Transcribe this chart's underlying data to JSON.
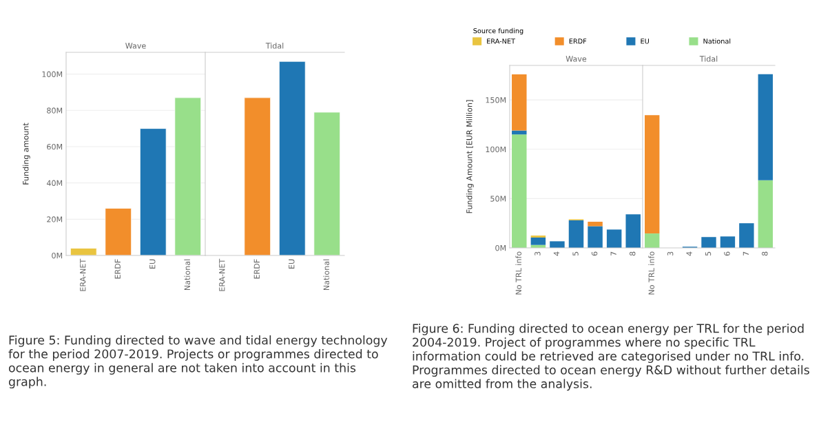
{
  "chart_data": [
    {
      "type": "bar",
      "title": "Wave",
      "ylabel": "Funding amount",
      "categories": [
        "ERA-NET",
        "ERDF",
        "EU",
        "National"
      ],
      "values": [
        4,
        26,
        70,
        87
      ],
      "colors": [
        "#e9c440",
        "#f28e2b",
        "#1f77b4",
        "#98df8a"
      ],
      "ylim": [
        0,
        112
      ],
      "yticks": [
        {
          "value": 0,
          "label": "0M"
        },
        {
          "value": 20,
          "label": "20M"
        },
        {
          "value": 40,
          "label": "40M"
        },
        {
          "value": 60,
          "label": "60M"
        },
        {
          "value": 80,
          "label": "80M"
        },
        {
          "value": 100,
          "label": "100M"
        }
      ],
      "grid": "y",
      "annotations": [
        "Figure 5: Funding directed to wave and tidal energy technology for the period 2007-2019. Projects or programmes directed to ocean energy in general are not taken into account in this graph."
      ]
    },
    {
      "type": "bar",
      "title": "Tidal",
      "categories": [
        "ERA-NET",
        "ERDF",
        "EU",
        "National"
      ],
      "values": [
        null,
        87,
        107,
        79
      ],
      "colors": [
        "#e9c440",
        "#f28e2b",
        "#1f77b4",
        "#98df8a"
      ],
      "ylim": [
        0,
        112
      ],
      "grid": "y",
      "tick_labels": "x"
    },
    {
      "type": "bar",
      "title": "Wave",
      "ylabel": "Funding Amount [EUR Million]",
      "legend_title": "Source funding",
      "legend": "top",
      "stacked": true,
      "categories": [
        "No TRL info",
        "3",
        "4",
        "5",
        "6",
        "7",
        "8"
      ],
      "series": [
        {
          "name": "National",
          "color": "#98df8a",
          "values": [
            115,
            3,
            0,
            0,
            0,
            0,
            0
          ]
        },
        {
          "name": "EU",
          "color": "#1f77b4",
          "values": [
            4,
            7.5,
            6.7,
            28,
            22,
            18.6,
            34
          ]
        },
        {
          "name": "ERDF",
          "color": "#f28e2b",
          "values": [
            57,
            0,
            0,
            0,
            4.5,
            0,
            0
          ]
        },
        {
          "name": "ERA-NET",
          "color": "#e9c440",
          "values": [
            0,
            2,
            0,
            1,
            0,
            0,
            0
          ]
        }
      ],
      "ylim": [
        0,
        185
      ],
      "yticks": [
        {
          "value": 0,
          "label": "0M"
        },
        {
          "value": 50,
          "label": "50M"
        },
        {
          "value": 100,
          "label": "100M"
        },
        {
          "value": 150,
          "label": "150M"
        }
      ],
      "grid": "y",
      "annotations": [
        "Figure 6: Funding directed to ocean energy per TRL for the period 2004-2019. Project of programmes where no specific TRL information could be retrieved are categorised under no TRL info. Programmes directed to ocean energy R&D without further details are omitted from the analysis."
      ]
    },
    {
      "type": "bar",
      "title": "Tidal",
      "stacked": true,
      "categories": [
        "No TRL info",
        "3",
        "4",
        "5",
        "6",
        "7",
        "8"
      ],
      "series": [
        {
          "color": "#98df8a",
          "values": [
            14.6,
            0,
            0,
            0,
            0,
            0,
            68.6
          ]
        },
        {
          "color": "#1f77b4",
          "values": [
            0,
            0,
            1.2,
            11,
            11.6,
            25,
            107.5
          ]
        },
        {
          "color": "#f28e2b",
          "values": [
            120,
            0,
            0,
            0,
            0,
            0,
            0
          ]
        }
      ],
      "ylim": [
        0,
        185
      ],
      "grid": "y",
      "tick_labels": "x"
    }
  ]
}
